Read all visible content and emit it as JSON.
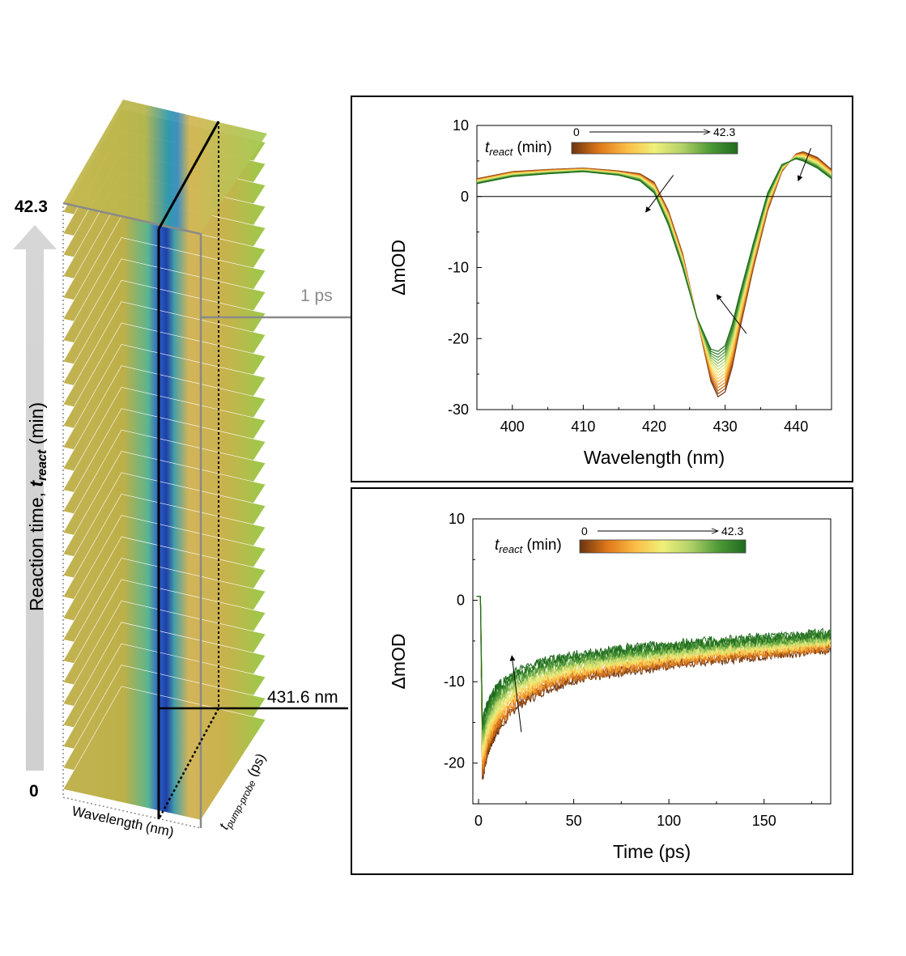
{
  "left_panel": {
    "top_value": "42.3",
    "bottom_value": "0",
    "axis_title": "Reaction time, ",
    "axis_var_main": "t",
    "axis_var_sub": "react",
    "axis_units": " (min)",
    "xaxis_label": "Wavelength",
    "xaxis_units": "(nm)",
    "zaxis_var": "t",
    "zaxis_sub": "pump-probe",
    "zaxis_units": " (ps)",
    "slice_time_label": "1 ps",
    "slice_wavelength_label": "431.6 nm"
  },
  "colorbar": {
    "label_var": "t",
    "label_sub": "react",
    "label_units": " (min)",
    "start": "0",
    "end": "42.3",
    "colors": [
      "#6b3310",
      "#e0771a",
      "#fbbd45",
      "#f0f07a",
      "#b2d168",
      "#4f9a38",
      "#1f6b1e"
    ]
  },
  "chart_data": [
    {
      "type": "line",
      "title": "",
      "xlabel": "Wavelength (nm)",
      "ylabel": "ΔmOD",
      "xlim": [
        395,
        445
      ],
      "ylim": [
        -30,
        10
      ],
      "xticks": [
        "400",
        "410",
        "420",
        "430",
        "440"
      ],
      "yticks": [
        "10",
        "0",
        "-10",
        "-20",
        "-30"
      ],
      "zero_line": true,
      "series_count": 16,
      "series_first": {
        "x": [
          395,
          400,
          405,
          410,
          415,
          418,
          420,
          422,
          424,
          426,
          428,
          429,
          430,
          431,
          432,
          434,
          436,
          438,
          440,
          441,
          443,
          445
        ],
        "y": [
          2.5,
          3.5,
          3.8,
          4.0,
          3.6,
          3.2,
          2.0,
          -2.0,
          -8.0,
          -17.0,
          -26.0,
          -28.2,
          -27.5,
          -24.0,
          -19.0,
          -10.0,
          -2.0,
          3.5,
          6.0,
          6.3,
          5.5,
          3.8
        ]
      },
      "series_last": {
        "x": [
          395,
          400,
          405,
          410,
          415,
          418,
          420,
          422,
          424,
          426,
          428,
          429,
          430,
          431,
          432,
          434,
          436,
          438,
          440,
          441,
          443,
          445
        ],
        "y": [
          1.8,
          2.8,
          3.2,
          3.5,
          3.0,
          2.2,
          0.5,
          -4.0,
          -10.0,
          -17.0,
          -21.5,
          -21.8,
          -21.0,
          -18.0,
          -14.0,
          -6.5,
          0.5,
          4.5,
          5.3,
          5.0,
          4.0,
          2.5
        ]
      },
      "annotations": [
        "arrow at 421 nm pointing down",
        "arrow at 430 nm pointing up",
        "arrow at 441 nm pointing down"
      ]
    },
    {
      "type": "line",
      "title": "",
      "xlabel": "Time (ps)",
      "ylabel": "ΔmOD",
      "xlim": [
        -3,
        185
      ],
      "ylim": [
        -25,
        10
      ],
      "xticks": [
        "0",
        "50",
        "100",
        "150"
      ],
      "yticks": [
        "10",
        "0",
        "-10",
        "-20"
      ],
      "series_count": 16,
      "series_first": {
        "x": [
          -1,
          1,
          2,
          5,
          10,
          20,
          35,
          50,
          75,
          100,
          125,
          150,
          185
        ],
        "y": [
          0.5,
          0.5,
          -22.0,
          -18.5,
          -16.0,
          -13.0,
          -11.0,
          -9.8,
          -8.8,
          -8.0,
          -7.3,
          -6.8,
          -6.0
        ]
      },
      "series_last": {
        "x": [
          -1,
          1,
          2,
          5,
          10,
          20,
          35,
          50,
          75,
          100,
          125,
          150,
          185
        ],
        "y": [
          0.5,
          0.5,
          -15.0,
          -12.5,
          -10.5,
          -8.8,
          -7.5,
          -6.8,
          -6.0,
          -5.5,
          -5.0,
          -4.6,
          -4.0
        ]
      },
      "annotations": [
        "arrow near 20 ps pointing up"
      ]
    }
  ]
}
